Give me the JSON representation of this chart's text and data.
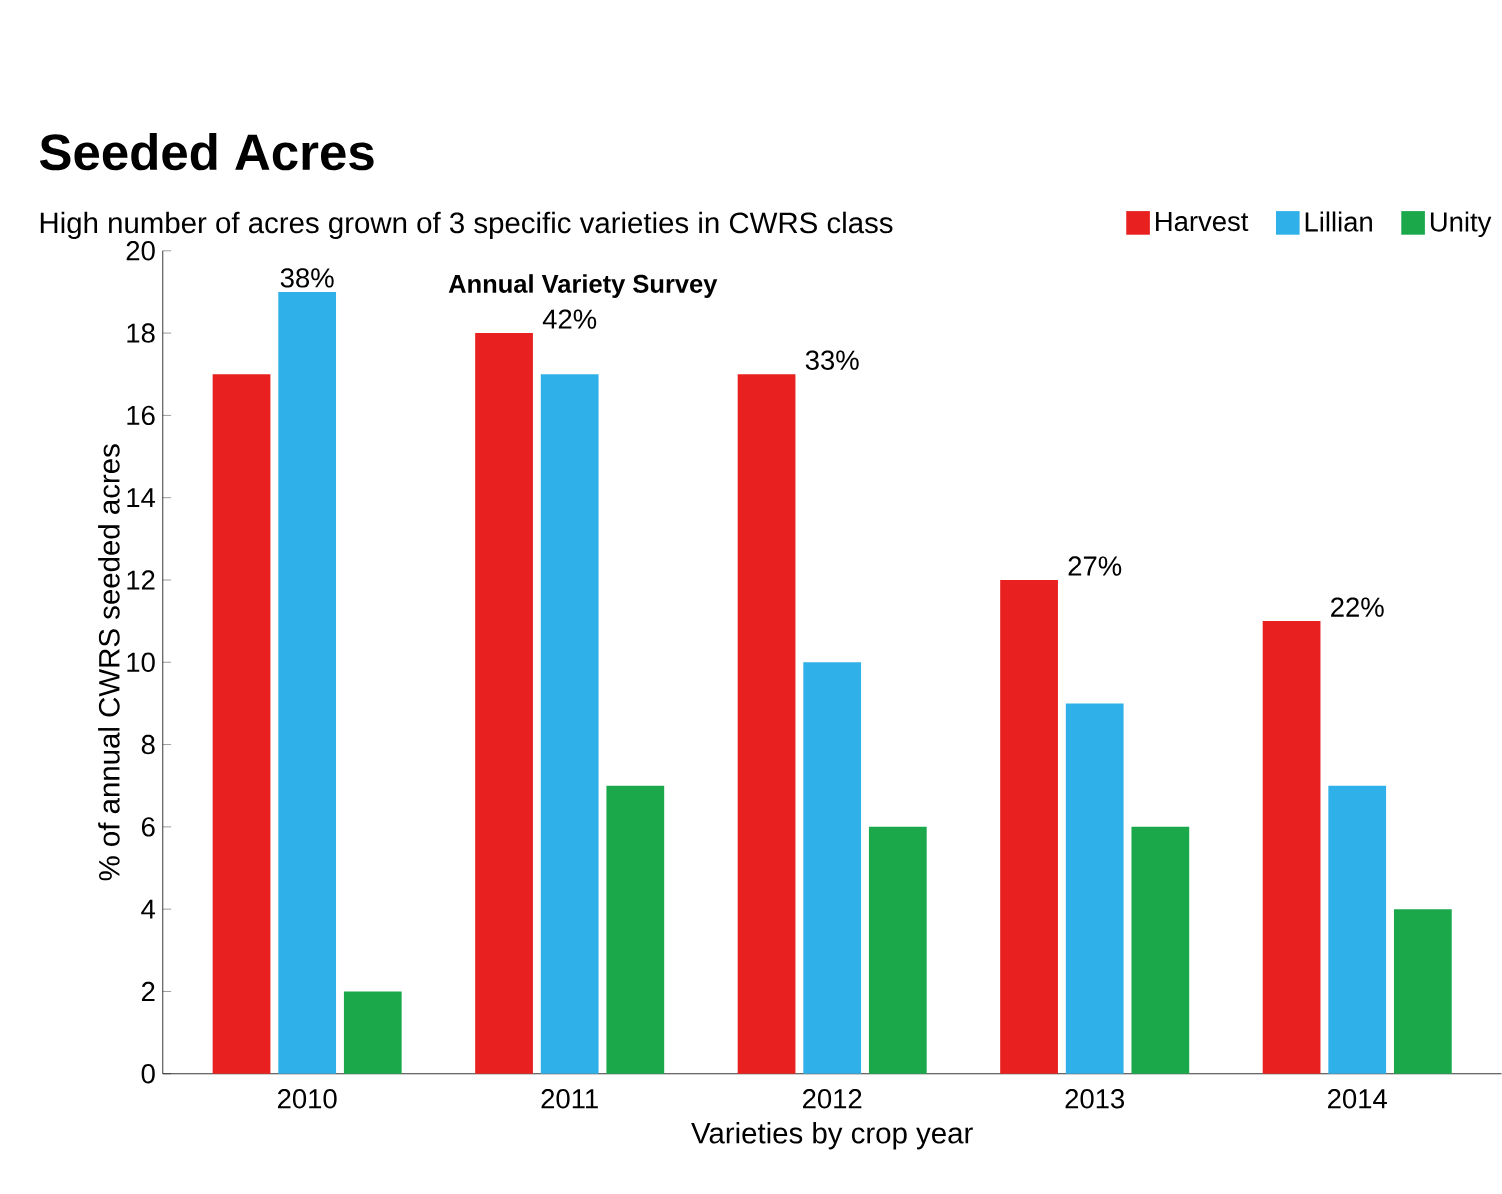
{
  "chart_data": {
    "type": "bar",
    "title": "Seeded Acres",
    "subtitle": "High number of acres grown of 3 specific varieties in CWRS class",
    "xlabel": "Varieties by crop year",
    "ylabel": "% of annual CWRS seeded acres",
    "categories": [
      "2010",
      "2011",
      "2012",
      "2013",
      "2014"
    ],
    "series": [
      {
        "name": "Harvest",
        "color": "#e8201f",
        "values": [
          17,
          18,
          17,
          12,
          11
        ]
      },
      {
        "name": "Lillian",
        "color": "#2fb0e8",
        "values": [
          19,
          17,
          10,
          9,
          7
        ]
      },
      {
        "name": "Unity",
        "color": "#1aa84b",
        "values": [
          2,
          7,
          6,
          6,
          4
        ]
      }
    ],
    "ylim": [
      0,
      20
    ],
    "yticks": [
      0,
      2,
      4,
      6,
      8,
      10,
      12,
      14,
      16,
      18,
      20
    ],
    "grid": false,
    "legend": "top right",
    "annotations": [
      "Annual Variety Survey",
      "38%",
      "42%",
      "33%",
      "27%",
      "22%"
    ]
  }
}
